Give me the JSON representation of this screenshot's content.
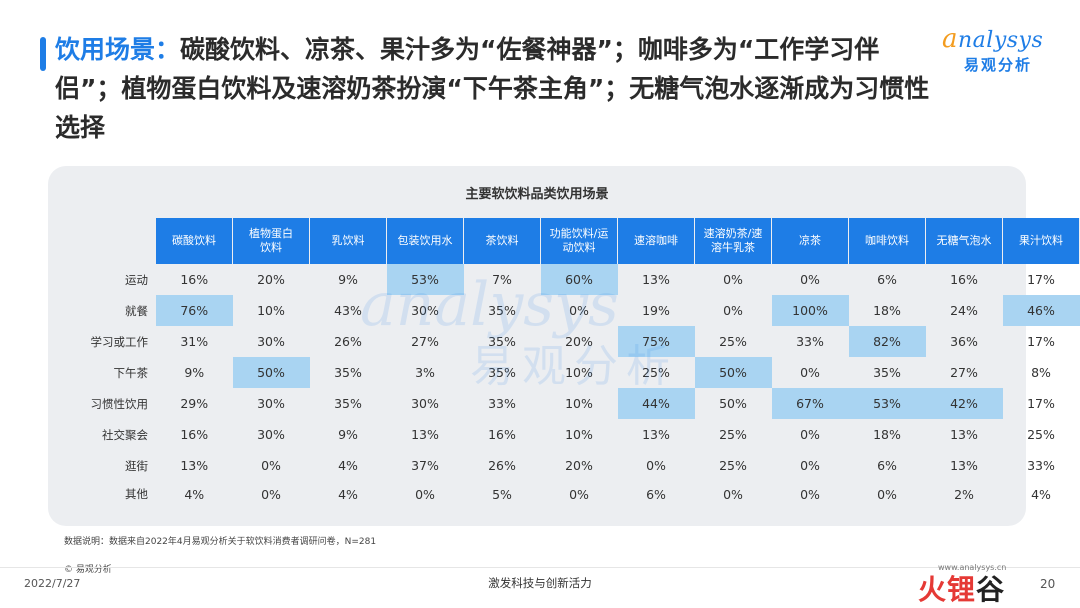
{
  "header": {
    "title_highlight": "饮用场景：",
    "title_rest": "碳酸饮料、凉茶、果汁多为“佐餐神器”；咖啡多为“工作学习伴侣”；植物蛋白饮料及速溶奶茶扮演“下午茶主角”；无糖气泡水逐渐成为习惯性选择"
  },
  "logo": {
    "en_first": "a",
    "en_rest": "nalysys",
    "cn": "易观分析"
  },
  "watermark": {
    "en": "analysys",
    "cn": "易观分析"
  },
  "table": {
    "title": "主要软饮料品类饮用场景",
    "columns": [
      [
        "碳酸饮料"
      ],
      [
        "植物蛋白",
        "饮料"
      ],
      [
        "乳饮料"
      ],
      [
        "包装饮用水"
      ],
      [
        "茶饮料"
      ],
      [
        "功能饮料/运",
        "动饮料"
      ],
      [
        "速溶咖啡"
      ],
      [
        "速溶奶茶/速",
        "溶牛乳茶"
      ],
      [
        "凉茶"
      ],
      [
        "咖啡饮料"
      ],
      [
        "无糖气泡水"
      ],
      [
        "果汁饮料"
      ]
    ],
    "rows": [
      {
        "label": "运动",
        "values": [
          "16%",
          "20%",
          "9%",
          "53%",
          "7%",
          "60%",
          "13%",
          "0%",
          "0%",
          "6%",
          "16%",
          "17%"
        ],
        "highlight": [
          3,
          5
        ]
      },
      {
        "label": "就餐",
        "values": [
          "76%",
          "10%",
          "43%",
          "30%",
          "35%",
          "0%",
          "19%",
          "0%",
          "100%",
          "18%",
          "24%",
          "46%"
        ],
        "highlight": [
          0,
          8,
          11
        ]
      },
      {
        "label": "学习或工作",
        "values": [
          "31%",
          "30%",
          "26%",
          "27%",
          "35%",
          "20%",
          "75%",
          "25%",
          "33%",
          "82%",
          "36%",
          "17%"
        ],
        "highlight": [
          6,
          9
        ]
      },
      {
        "label": "下午茶",
        "values": [
          "9%",
          "50%",
          "35%",
          "3%",
          "35%",
          "10%",
          "25%",
          "50%",
          "0%",
          "35%",
          "27%",
          "8%"
        ],
        "highlight": [
          1,
          7
        ]
      },
      {
        "label": "习惯性饮用",
        "values": [
          "29%",
          "30%",
          "35%",
          "30%",
          "33%",
          "10%",
          "44%",
          "50%",
          "67%",
          "53%",
          "42%",
          "17%"
        ],
        "highlight": [
          6,
          8,
          9,
          10
        ]
      },
      {
        "label": "社交聚会",
        "values": [
          "16%",
          "30%",
          "9%",
          "13%",
          "16%",
          "10%",
          "13%",
          "25%",
          "0%",
          "18%",
          "13%",
          "25%"
        ],
        "highlight": []
      },
      {
        "label": "逛街",
        "values": [
          "13%",
          "0%",
          "4%",
          "37%",
          "26%",
          "20%",
          "0%",
          "25%",
          "0%",
          "6%",
          "13%",
          "33%"
        ],
        "highlight": []
      },
      {
        "label": "其他",
        "values": [
          "4%",
          "0%",
          "4%",
          "0%",
          "5%",
          "0%",
          "6%",
          "0%",
          "0%",
          "0%",
          "2%",
          "4%"
        ],
        "highlight": []
      }
    ],
    "highlight_color": "#a9d4f2",
    "header_color": "#1e7de6"
  },
  "footer": {
    "note": "数据说明：数据来自2022年4月易观分析关于软饮料消费者调研问卷，N=281",
    "copyright": "© 易观分析",
    "date": "2022/7/27",
    "slogan": "激发科技与创新活力",
    "url": "www.analysys.cn",
    "page": "20",
    "brand": [
      "火",
      "锂",
      "谷"
    ]
  }
}
